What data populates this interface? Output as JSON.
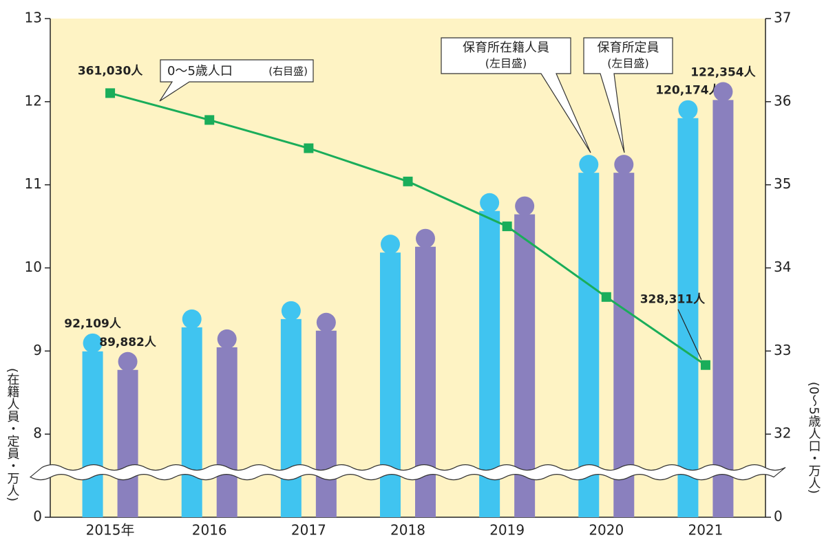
{
  "chart_data": {
    "type": "bar-line",
    "categories": [
      "2015年",
      "2016",
      "2017",
      "2018",
      "2019",
      "2020",
      "2021"
    ],
    "ylabel": "(在籍人員・定員・万人)",
    "y2label": "(0〜5歳人口・万人)",
    "ylim": [
      0,
      13
    ],
    "yticks": [
      0,
      8,
      9,
      10,
      11,
      12,
      13
    ],
    "y2lim": [
      0,
      37
    ],
    "y2ticks": [
      0,
      32,
      33,
      34,
      35,
      36,
      37
    ],
    "series": [
      {
        "name": "保育所在籍人員",
        "scale_note": "(左目盛)",
        "kind": "bar",
        "color": "#40c4f0",
        "values": [
          9.2109,
          9.5,
          9.6,
          10.4,
          10.9,
          11.36,
          12.0174
        ],
        "value_labels": [
          "92,109人",
          null,
          null,
          null,
          null,
          null,
          "120,174人"
        ]
      },
      {
        "name": "保育所定員",
        "scale_note": "(左目盛)",
        "kind": "bar",
        "color": "#8a80be",
        "values": [
          8.9882,
          9.26,
          9.46,
          10.47,
          10.86,
          11.36,
          12.2354
        ],
        "value_labels": [
          "89,882人",
          null,
          null,
          null,
          null,
          null,
          "122,354人"
        ]
      },
      {
        "name": "0〜5歳人口",
        "scale_note": "(右目盛)",
        "kind": "line",
        "axis": "y2",
        "color": "#1aad5a",
        "values": [
          36.103,
          35.78,
          35.44,
          35.04,
          34.5,
          33.65,
          32.8311
        ],
        "value_labels": [
          "361,030人",
          null,
          null,
          null,
          null,
          null,
          "328,311人"
        ]
      }
    ]
  }
}
